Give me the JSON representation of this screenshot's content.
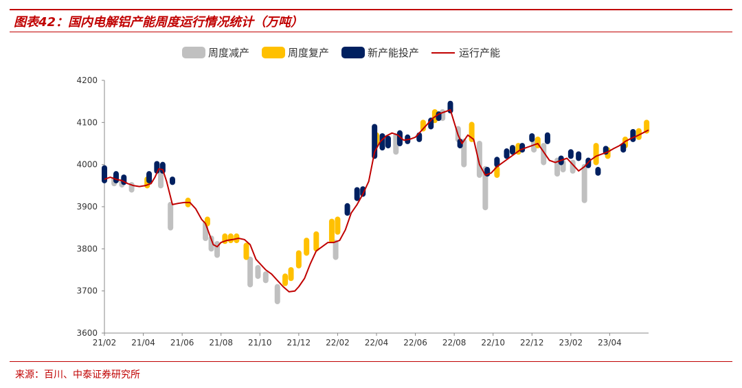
{
  "header": {
    "title": "图表42：国内电解铝产能周度运行情况统计（万吨）"
  },
  "footer": {
    "source": "来源：百川、中泰证券研究所"
  },
  "colors": {
    "reduce": "#c0c0c0",
    "resume": "#ffc000",
    "new_capacity": "#002060",
    "running": "#c00000",
    "accent": "#c00000"
  },
  "legend": [
    {
      "label": "周度减产",
      "key": "reduce",
      "kind": "block"
    },
    {
      "label": "周度复产",
      "key": "resume",
      "kind": "block"
    },
    {
      "label": "新产能投产",
      "key": "new_capacity",
      "kind": "block"
    },
    {
      "label": "运行产能",
      "key": "running",
      "kind": "line"
    }
  ],
  "chart_data": {
    "type": "line",
    "title": "国内电解铝产能周度运行情况统计（万吨）",
    "xlabel": "",
    "ylabel": "",
    "ylim": [
      3600,
      4200
    ],
    "yticks": [
      3600,
      3700,
      3800,
      3900,
      4000,
      4100,
      4200
    ],
    "xlim": [
      0,
      28
    ],
    "xticks": [
      {
        "label": "21/02",
        "x": 0
      },
      {
        "label": "21/04",
        "x": 2
      },
      {
        "label": "21/06",
        "x": 4
      },
      {
        "label": "21/08",
        "x": 6
      },
      {
        "label": "21/10",
        "x": 8
      },
      {
        "label": "21/12",
        "x": 10
      },
      {
        "label": "22/02",
        "x": 12
      },
      {
        "label": "22/04",
        "x": 14
      },
      {
        "label": "22/06",
        "x": 16
      },
      {
        "label": "22/08",
        "x": 18
      },
      {
        "label": "22/10",
        "x": 20
      },
      {
        "label": "22/12",
        "x": 22
      },
      {
        "label": "23/02",
        "x": 24
      },
      {
        "label": "23/04",
        "x": 26
      }
    ],
    "legend_position": "top-center",
    "grid": false,
    "series": [
      {
        "name": "运行产能",
        "x": [
          0,
          0.3,
          0.6,
          0.9,
          1.2,
          1.5,
          1.8,
          2.1,
          2.4,
          2.6,
          2.8,
          3.0,
          3.2,
          3.5,
          3.8,
          4.1,
          4.4,
          4.7,
          5.0,
          5.2,
          5.4,
          5.6,
          5.8,
          6.0,
          6.3,
          6.6,
          6.9,
          7.2,
          7.5,
          7.8,
          8.0,
          8.3,
          8.6,
          8.9,
          9.2,
          9.5,
          9.8,
          10.0,
          10.3,
          10.6,
          10.9,
          11.2,
          11.5,
          11.8,
          12.1,
          12.4,
          12.7,
          13.0,
          13.3,
          13.6,
          13.9,
          14.2,
          14.5,
          14.8,
          15.1,
          15.4,
          15.7,
          16.0,
          16.3,
          16.6,
          16.9,
          17.2,
          17.5,
          17.8,
          18.0,
          18.2,
          18.4,
          18.7,
          19.0,
          19.3,
          19.6,
          19.9,
          20.2,
          20.5,
          20.8,
          21.1,
          21.4,
          21.7,
          22.0,
          22.3,
          22.6,
          22.9,
          23.2,
          23.5,
          23.8,
          24.1,
          24.4,
          24.7,
          25.0,
          25.3,
          25.6,
          25.9,
          26.2,
          26.5,
          26.8,
          27.1,
          27.4,
          27.7,
          28.0
        ],
        "values": [
          3965,
          3970,
          3965,
          3962,
          3955,
          3950,
          3948,
          3950,
          3955,
          3970,
          3990,
          3988,
          3960,
          3905,
          3908,
          3910,
          3910,
          3895,
          3870,
          3860,
          3835,
          3810,
          3805,
          3815,
          3820,
          3822,
          3825,
          3822,
          3810,
          3775,
          3765,
          3750,
          3740,
          3725,
          3710,
          3698,
          3700,
          3710,
          3730,
          3765,
          3795,
          3805,
          3815,
          3815,
          3820,
          3845,
          3885,
          3905,
          3930,
          3960,
          4030,
          4055,
          4068,
          4075,
          4070,
          4058,
          4060,
          4065,
          4080,
          4095,
          4110,
          4120,
          4125,
          4130,
          4100,
          4070,
          4050,
          4070,
          4060,
          4000,
          3975,
          3980,
          3995,
          4005,
          4015,
          4025,
          4035,
          4040,
          4045,
          4050,
          4030,
          4010,
          4005,
          4010,
          4015,
          4000,
          3985,
          3995,
          4010,
          4020,
          4025,
          4030,
          4038,
          4045,
          4055,
          4062,
          4068,
          4075,
          4082
        ]
      },
      {
        "name": "周度减产",
        "bars": [
          {
            "x": 0.5,
            "low": 3955,
            "high": 3965
          },
          {
            "x": 0.9,
            "low": 3952,
            "high": 3960
          },
          {
            "x": 1.4,
            "low": 3940,
            "high": 3952
          },
          {
            "x": 2.9,
            "low": 3950,
            "high": 3985
          },
          {
            "x": 3.4,
            "low": 3850,
            "high": 3905
          },
          {
            "x": 5.2,
            "low": 3825,
            "high": 3860
          },
          {
            "x": 5.5,
            "low": 3800,
            "high": 3825
          },
          {
            "x": 5.8,
            "low": 3785,
            "high": 3812
          },
          {
            "x": 7.5,
            "low": 3715,
            "high": 3775
          },
          {
            "x": 7.9,
            "low": 3735,
            "high": 3755
          },
          {
            "x": 8.3,
            "low": 3725,
            "high": 3740
          },
          {
            "x": 8.9,
            "low": 3675,
            "high": 3710
          },
          {
            "x": 11.9,
            "low": 3780,
            "high": 3815
          },
          {
            "x": 15.0,
            "low": 4030,
            "high": 4068
          },
          {
            "x": 17.4,
            "low": 4110,
            "high": 4125
          },
          {
            "x": 18.2,
            "low": 4060,
            "high": 4085
          },
          {
            "x": 18.5,
            "low": 4000,
            "high": 4055
          },
          {
            "x": 19.3,
            "low": 3975,
            "high": 4050
          },
          {
            "x": 19.6,
            "low": 3898,
            "high": 3990
          },
          {
            "x": 22.1,
            "low": 4035,
            "high": 4055
          },
          {
            "x": 22.6,
            "low": 4005,
            "high": 4045
          },
          {
            "x": 23.3,
            "low": 3978,
            "high": 4010
          },
          {
            "x": 23.6,
            "low": 3988,
            "high": 4005
          },
          {
            "x": 24.1,
            "low": 3985,
            "high": 4005
          },
          {
            "x": 24.7,
            "low": 3915,
            "high": 3995
          }
        ]
      },
      {
        "name": "周度复产",
        "bars": [
          {
            "x": 2.2,
            "low": 3950,
            "high": 3965
          },
          {
            "x": 4.3,
            "low": 3905,
            "high": 3915
          },
          {
            "x": 5.3,
            "low": 3860,
            "high": 3870
          },
          {
            "x": 6.2,
            "low": 3818,
            "high": 3830
          },
          {
            "x": 6.5,
            "low": 3820,
            "high": 3830
          },
          {
            "x": 6.8,
            "low": 3820,
            "high": 3830
          },
          {
            "x": 7.3,
            "low": 3780,
            "high": 3808
          },
          {
            "x": 9.3,
            "low": 3718,
            "high": 3735
          },
          {
            "x": 9.6,
            "low": 3730,
            "high": 3750
          },
          {
            "x": 10.0,
            "low": 3760,
            "high": 3790
          },
          {
            "x": 10.4,
            "low": 3790,
            "high": 3820
          },
          {
            "x": 10.9,
            "low": 3800,
            "high": 3835
          },
          {
            "x": 11.7,
            "low": 3820,
            "high": 3865
          },
          {
            "x": 12.0,
            "low": 3840,
            "high": 3870
          },
          {
            "x": 14.0,
            "low": 4050,
            "high": 4070
          },
          {
            "x": 16.4,
            "low": 4085,
            "high": 4100
          },
          {
            "x": 17.0,
            "low": 4105,
            "high": 4125
          },
          {
            "x": 18.9,
            "low": 4060,
            "high": 4095
          },
          {
            "x": 20.2,
            "low": 3975,
            "high": 3990
          },
          {
            "x": 21.3,
            "low": 4030,
            "high": 4045
          },
          {
            "x": 22.3,
            "low": 4045,
            "high": 4060
          },
          {
            "x": 25.3,
            "low": 4005,
            "high": 4045
          },
          {
            "x": 25.9,
            "low": 4020,
            "high": 4035
          },
          {
            "x": 26.8,
            "low": 4045,
            "high": 4060
          },
          {
            "x": 27.5,
            "low": 4065,
            "high": 4080
          },
          {
            "x": 27.9,
            "low": 4080,
            "high": 4100
          }
        ]
      },
      {
        "name": "新产能投产",
        "bars": [
          {
            "x": 0.0,
            "low": 3962,
            "high": 3992
          },
          {
            "x": 0.6,
            "low": 3962,
            "high": 3978
          },
          {
            "x": 1.0,
            "low": 3958,
            "high": 3970
          },
          {
            "x": 2.3,
            "low": 3962,
            "high": 3978
          },
          {
            "x": 2.7,
            "low": 3985,
            "high": 4002
          },
          {
            "x": 3.0,
            "low": 3985,
            "high": 4000
          },
          {
            "x": 3.5,
            "low": 3958,
            "high": 3965
          },
          {
            "x": 12.5,
            "low": 3885,
            "high": 3902
          },
          {
            "x": 13.0,
            "low": 3920,
            "high": 3940
          },
          {
            "x": 13.3,
            "low": 3930,
            "high": 3942
          },
          {
            "x": 13.9,
            "low": 4020,
            "high": 4090
          },
          {
            "x": 14.3,
            "low": 4040,
            "high": 4068
          },
          {
            "x": 14.6,
            "low": 4045,
            "high": 4062
          },
          {
            "x": 15.2,
            "low": 4050,
            "high": 4075
          },
          {
            "x": 15.6,
            "low": 4055,
            "high": 4065
          },
          {
            "x": 16.2,
            "low": 4060,
            "high": 4070
          },
          {
            "x": 16.8,
            "low": 4090,
            "high": 4105
          },
          {
            "x": 17.2,
            "low": 4110,
            "high": 4120
          },
          {
            "x": 17.8,
            "low": 4128,
            "high": 4145
          },
          {
            "x": 18.3,
            "low": 4045,
            "high": 4055
          },
          {
            "x": 19.7,
            "low": 3978,
            "high": 3988
          },
          {
            "x": 20.2,
            "low": 4000,
            "high": 4012
          },
          {
            "x": 20.7,
            "low": 4020,
            "high": 4032
          },
          {
            "x": 21.0,
            "low": 4030,
            "high": 4040
          },
          {
            "x": 21.5,
            "low": 4035,
            "high": 4045
          },
          {
            "x": 22.0,
            "low": 4060,
            "high": 4068
          },
          {
            "x": 22.8,
            "low": 4055,
            "high": 4070
          },
          {
            "x": 23.5,
            "low": 4005,
            "high": 4015
          },
          {
            "x": 24.0,
            "low": 4020,
            "high": 4030
          },
          {
            "x": 24.4,
            "low": 4015,
            "high": 4025
          },
          {
            "x": 24.9,
            "low": 3998,
            "high": 4010
          },
          {
            "x": 25.4,
            "low": 3980,
            "high": 3988
          },
          {
            "x": 25.8,
            "low": 4030,
            "high": 4038
          },
          {
            "x": 26.7,
            "low": 4035,
            "high": 4045
          },
          {
            "x": 27.2,
            "low": 4060,
            "high": 4078
          }
        ]
      }
    ]
  }
}
